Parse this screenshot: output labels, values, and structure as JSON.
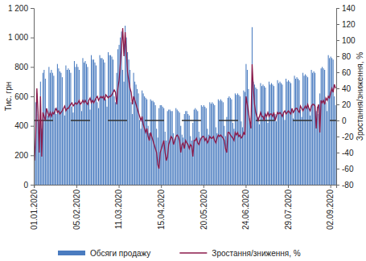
{
  "chart_data": {
    "type": "bar",
    "y_label": "Тис. грн",
    "y2_label": "Зростання/зниження, %",
    "categories": [
      "01.01.2020",
      null,
      null,
      null,
      null,
      null,
      null,
      null,
      null,
      null,
      null,
      null,
      null,
      null,
      null,
      null,
      null,
      null,
      null,
      null,
      null,
      null,
      null,
      null,
      null,
      null,
      null,
      null,
      null,
      null,
      null,
      null,
      null,
      null,
      null,
      "05.02.2020",
      null,
      null,
      null,
      null,
      null,
      null,
      null,
      null,
      null,
      null,
      null,
      null,
      null,
      null,
      null,
      null,
      null,
      null,
      null,
      null,
      null,
      null,
      null,
      null,
      null,
      null,
      null,
      null,
      null,
      null,
      null,
      null,
      null,
      null,
      "11.03.2020",
      null,
      null,
      null,
      null,
      null,
      null,
      null,
      null,
      null,
      null,
      null,
      null,
      null,
      null,
      null,
      null,
      null,
      null,
      null,
      null,
      null,
      null,
      null,
      null,
      null,
      null,
      null,
      null,
      null,
      null,
      null,
      null,
      null,
      null,
      "15.04.2020",
      null,
      null,
      null,
      null,
      null,
      null,
      null,
      null,
      null,
      null,
      null,
      null,
      null,
      null,
      null,
      null,
      null,
      null,
      null,
      null,
      null,
      null,
      null,
      null,
      null,
      null,
      null,
      null,
      null,
      null,
      null,
      null,
      null,
      null,
      "20.05.2020",
      null,
      null,
      null,
      null,
      null,
      null,
      null,
      null,
      null,
      null,
      null,
      null,
      null,
      null,
      null,
      null,
      null,
      null,
      null,
      null,
      null,
      null,
      null,
      null,
      null,
      null,
      null,
      null,
      null,
      null,
      null,
      null,
      null,
      null,
      "24.06.2020",
      null,
      null,
      null,
      null,
      null,
      null,
      null,
      null,
      null,
      null,
      null,
      null,
      null,
      null,
      null,
      null,
      null,
      null,
      null,
      null,
      null,
      null,
      null,
      null,
      null,
      null,
      null,
      null,
      null,
      null,
      null,
      null,
      null,
      null,
      "29.07.2020",
      null,
      null,
      null,
      null,
      null,
      null,
      null,
      null,
      null,
      null,
      null,
      null,
      null,
      null,
      null,
      null,
      null,
      null,
      null,
      null,
      null,
      null,
      null,
      null,
      null,
      null,
      null,
      null,
      null,
      null,
      null,
      null,
      null,
      null,
      "02.09.2020",
      null,
      null,
      null,
      null
    ],
    "series": [
      {
        "name": "Обсяги продажу",
        "type": "bar",
        "color": "#4a7cc0",
        "values": [
          220,
          560,
          620,
          480,
          430,
          700,
          380,
          760,
          780,
          720,
          520,
          470,
          800,
          760,
          780,
          760,
          740,
          520,
          480,
          820,
          790,
          770,
          760,
          730,
          510,
          470,
          810,
          780,
          790,
          780,
          760,
          530,
          490,
          840,
          800,
          820,
          800,
          780,
          540,
          500,
          860,
          830,
          840,
          820,
          800,
          560,
          510,
          880,
          850,
          850,
          830,
          810,
          560,
          520,
          880,
          860,
          860,
          850,
          830,
          580,
          530,
          900,
          880,
          880,
          870,
          850,
          600,
          560,
          760,
          920,
          950,
          1000,
          1040,
          780,
          700,
          1080,
          1000,
          900,
          850,
          780,
          560,
          480,
          760,
          700,
          680,
          650,
          620,
          440,
          380,
          640,
          620,
          600,
          590,
          580,
          400,
          350,
          580,
          570,
          570,
          560,
          540,
          380,
          320,
          520,
          540,
          540,
          530,
          520,
          360,
          300,
          500,
          510,
          510,
          500,
          500,
          350,
          310,
          520,
          510,
          500,
          490,
          400,
          340,
          320,
          480,
          500,
          500,
          480,
          470,
          330,
          300,
          420,
          510,
          520,
          510,
          500,
          360,
          320,
          540,
          530,
          540,
          530,
          520,
          380,
          340,
          560,
          550,
          560,
          550,
          540,
          390,
          350,
          580,
          570,
          580,
          570,
          560,
          400,
          330,
          460,
          590,
          600,
          590,
          580,
          420,
          380,
          620,
          610,
          620,
          610,
          600,
          430,
          390,
          640,
          630,
          820,
          780,
          650,
          450,
          400,
          1070,
          700,
          680,
          660,
          650,
          460,
          410,
          690,
          670,
          680,
          670,
          660,
          470,
          420,
          700,
          680,
          690,
          680,
          670,
          480,
          430,
          710,
          690,
          700,
          690,
          680,
          490,
          440,
          720,
          700,
          710,
          700,
          690,
          500,
          450,
          740,
          720,
          730,
          720,
          710,
          510,
          460,
          760,
          740,
          750,
          740,
          730,
          520,
          470,
          780,
          760,
          770,
          760,
          500,
          530,
          480,
          620,
          790,
          800,
          790,
          780,
          560,
          500,
          880,
          860,
          870,
          860,
          850,
          600,
          540
        ]
      },
      {
        "name": "Зростання/зниження, %",
        "type": "line",
        "axis": "y2",
        "color": "#8b1a4a",
        "values": [
          -50,
          -20,
          40,
          10,
          -40,
          30,
          -45,
          10,
          5,
          0,
          15,
          10,
          5,
          10,
          5,
          10,
          8,
          12,
          15,
          10,
          12,
          8,
          10,
          12,
          15,
          18,
          12,
          15,
          15,
          18,
          20,
          22,
          18,
          20,
          22,
          20,
          22,
          25,
          20,
          22,
          25,
          22,
          25,
          22,
          20,
          25,
          28,
          22,
          25,
          22,
          25,
          28,
          30,
          25,
          28,
          30,
          28,
          30,
          25,
          32,
          30,
          28,
          30,
          30,
          32,
          35,
          38,
          35,
          20,
          40,
          50,
          70,
          90,
          115,
          80,
          110,
          85,
          60,
          50,
          40,
          35,
          20,
          30,
          25,
          20,
          15,
          10,
          5,
          0,
          5,
          -5,
          -10,
          -15,
          -10,
          -20,
          -25,
          -15,
          -20,
          -25,
          -30,
          -35,
          -40,
          -55,
          -60,
          -40,
          -35,
          -30,
          -25,
          -40,
          -50,
          -45,
          -30,
          -25,
          -20,
          -22,
          -30,
          -25,
          -20,
          -18,
          -20,
          -25,
          -40,
          -30,
          -28,
          -35,
          -25,
          -28,
          -30,
          -35,
          -30,
          -32,
          -45,
          -25,
          -25,
          -22,
          -28,
          -30,
          -25,
          -22,
          -20,
          -20,
          -25,
          -22,
          -28,
          -25,
          -20,
          -22,
          -22,
          -20,
          -25,
          -28,
          -22,
          -18,
          -20,
          -18,
          -20,
          -22,
          -25,
          -35,
          -40,
          -15,
          -15,
          -18,
          -20,
          -22,
          -25,
          -15,
          -18,
          -15,
          -20,
          -18,
          -22,
          -20,
          -15,
          -18,
          30,
          20,
          10,
          0,
          -10,
          70,
          40,
          20,
          10,
          5,
          0,
          5,
          10,
          5,
          5,
          0,
          8,
          5,
          10,
          5,
          8,
          8,
          5,
          10,
          0,
          5,
          10,
          8,
          10,
          8,
          5,
          10,
          12,
          8,
          10,
          12,
          10,
          8,
          15,
          10,
          12,
          15,
          15,
          12,
          10,
          18,
          15,
          12,
          15,
          18,
          15,
          20,
          15,
          12,
          18,
          20,
          20,
          18,
          -10,
          15,
          20,
          -15,
          25,
          22,
          25,
          20,
          28,
          25,
          30,
          28,
          35,
          40,
          35,
          45,
          40
        ]
      }
    ],
    "ylim": [
      0,
      1200
    ],
    "yticks": [
      0,
      200,
      400,
      600,
      800,
      {
        "value": 1000,
        "label": "1 000"
      },
      {
        "value": 1200,
        "label": "1 200"
      }
    ],
    "y2lim": [
      -80,
      140
    ],
    "y2ticks": [
      -80,
      -60,
      -40,
      -20,
      0,
      20,
      40,
      60,
      80,
      100,
      120,
      140
    ],
    "grid": false,
    "legend": "bottom"
  }
}
